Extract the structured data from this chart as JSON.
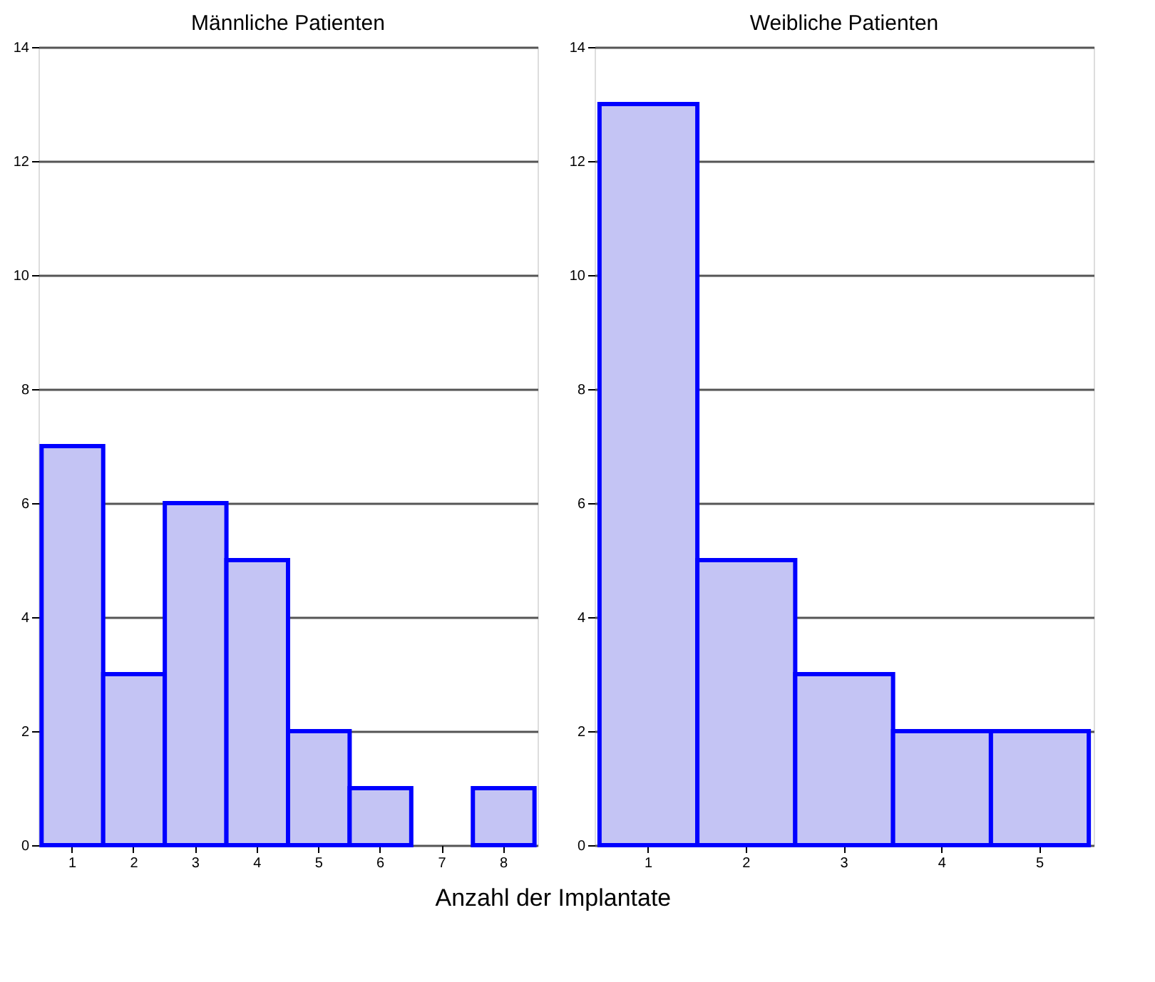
{
  "chart_data": [
    {
      "type": "bar",
      "title": "Männliche Patienten",
      "xlabel": "Anzahl der Implantate",
      "categories": [
        "1",
        "2",
        "3",
        "4",
        "5",
        "6",
        "7",
        "8"
      ],
      "series": [
        {
          "color": "#c4c4f4",
          "values": [
            7,
            3,
            6,
            5,
            2,
            1,
            0,
            1
          ]
        }
      ],
      "ylim": [
        0,
        14
      ],
      "yticks": [
        0,
        2,
        4,
        6,
        8,
        10,
        12,
        14
      ],
      "grid": "y"
    },
    {
      "type": "bar",
      "title": "Weibliche Patienten",
      "categories": [
        "1",
        "2",
        "3",
        "4",
        "5"
      ],
      "series": [
        {
          "color": "#c4c4f4",
          "values": [
            13,
            5,
            3,
            2,
            2
          ]
        }
      ],
      "ylim": [
        0,
        14
      ],
      "yticks": [
        0,
        2,
        4,
        6,
        8,
        10,
        12,
        14
      ],
      "grid": "y"
    }
  ]
}
